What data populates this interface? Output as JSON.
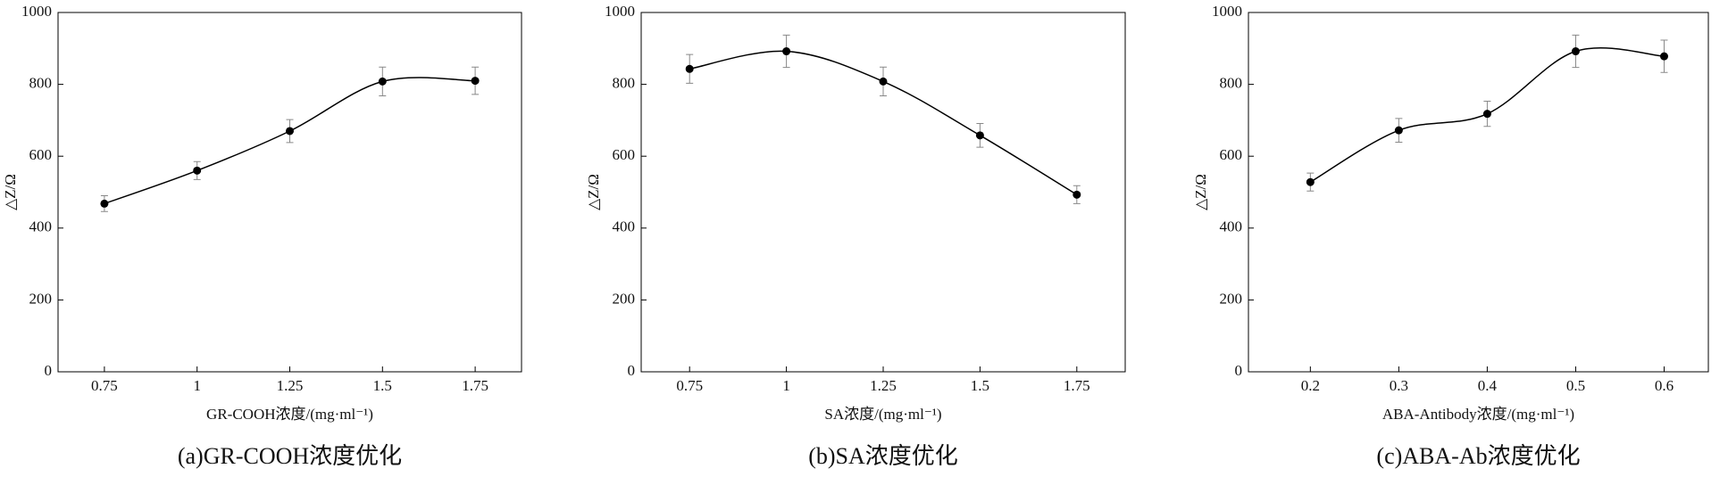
{
  "chart_data": [
    {
      "type": "line",
      "caption": "(a)GR-COOH浓度优化",
      "x_label": "GR-COOH浓度/(mg·ml⁻¹)",
      "y_label": "△Z/Ω",
      "x": [
        0.75,
        1,
        1.25,
        1.5,
        1.75
      ],
      "values": [
        468,
        560,
        670,
        808,
        810
      ],
      "errors": [
        22,
        25,
        32,
        40,
        38
      ],
      "color": "#000000",
      "xlim": [
        0.625,
        1.875
      ],
      "xticks": [
        0.75,
        1,
        1.25,
        1.5,
        1.75
      ],
      "ylim": [
        0,
        1000
      ],
      "yticks": [
        0,
        200,
        400,
        600,
        800,
        1000
      ]
    },
    {
      "type": "line",
      "caption": "(b)SA浓度优化",
      "x_label": "SA浓度/(mg·ml⁻¹)",
      "y_label": "△Z/Ω",
      "x": [
        0.75,
        1,
        1.25,
        1.5,
        1.75
      ],
      "values": [
        843,
        892,
        808,
        658,
        493
      ],
      "errors": [
        40,
        45,
        40,
        33,
        25
      ],
      "color": "#000000",
      "xlim": [
        0.625,
        1.875
      ],
      "xticks": [
        0.75,
        1,
        1.25,
        1.5,
        1.75
      ],
      "ylim": [
        0,
        1000
      ],
      "yticks": [
        0,
        200,
        400,
        600,
        800,
        1000
      ]
    },
    {
      "type": "line",
      "caption": "(c)ABA-Ab浓度优化",
      "x_label": "ABA-Antibody浓度/(mg·ml⁻¹)",
      "y_label": "△Z/Ω",
      "x": [
        0.2,
        0.3,
        0.4,
        0.5,
        0.6
      ],
      "values": [
        528,
        672,
        718,
        892,
        878
      ],
      "errors": [
        25,
        33,
        35,
        45,
        45
      ],
      "color": "#000000",
      "xlim": [
        0.13,
        0.65
      ],
      "xticks": [
        0.2,
        0.3,
        0.4,
        0.5,
        0.6
      ],
      "ylim": [
        0,
        1000
      ],
      "yticks": [
        0,
        200,
        400,
        600,
        800,
        1000
      ]
    }
  ]
}
